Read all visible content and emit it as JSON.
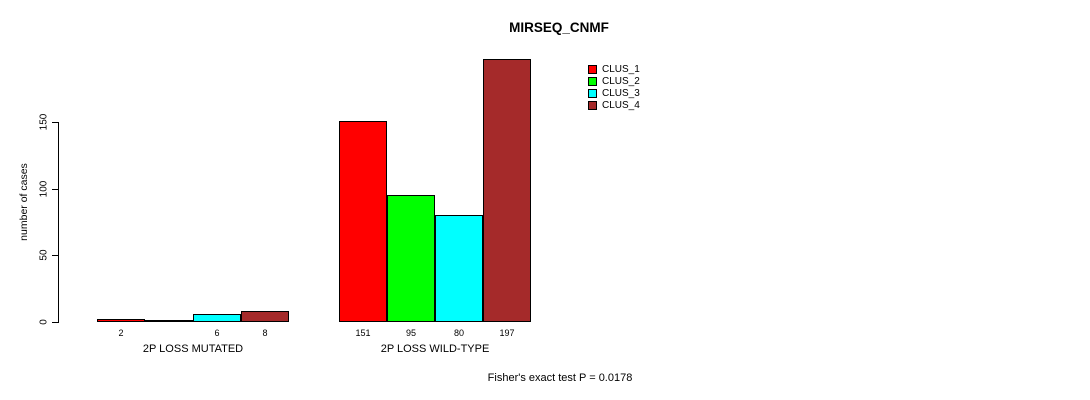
{
  "title": "MIRSEQ_CNMF",
  "footer": "Fisher's exact test P = 0.0178",
  "chart_data": {
    "type": "bar",
    "grouped": true,
    "categories": [
      "2P LOSS MUTATED",
      "2P LOSS WILD-TYPE"
    ],
    "series": [
      {
        "name": "CLUS_1",
        "color": "#FF0000",
        "values": [
          2,
          151
        ]
      },
      {
        "name": "CLUS_2",
        "color": "#00FF00",
        "values": [
          0,
          95
        ]
      },
      {
        "name": "CLUS_3",
        "color": "#00FFFF",
        "values": [
          6,
          80
        ]
      },
      {
        "name": "CLUS_4",
        "color": "#A52A2A",
        "values": [
          8,
          197
        ]
      }
    ],
    "title": "MIRSEQ_CNMF",
    "xlabel": "",
    "ylabel": "number of cases",
    "yticks": [
      0,
      50,
      100,
      150
    ],
    "ytick_labels": [
      "0",
      "50",
      "100",
      "150"
    ],
    "ylim": [
      0,
      150
    ],
    "bars_exceed_axis": true,
    "value_labels_under_bars": true,
    "show_zero_value_labels": false,
    "grid": false,
    "legend_position": "top-right-inside",
    "bar_border_color": "#000000",
    "axis_color": "#000000",
    "annotation": "Fisher's exact test P = 0.0178"
  }
}
